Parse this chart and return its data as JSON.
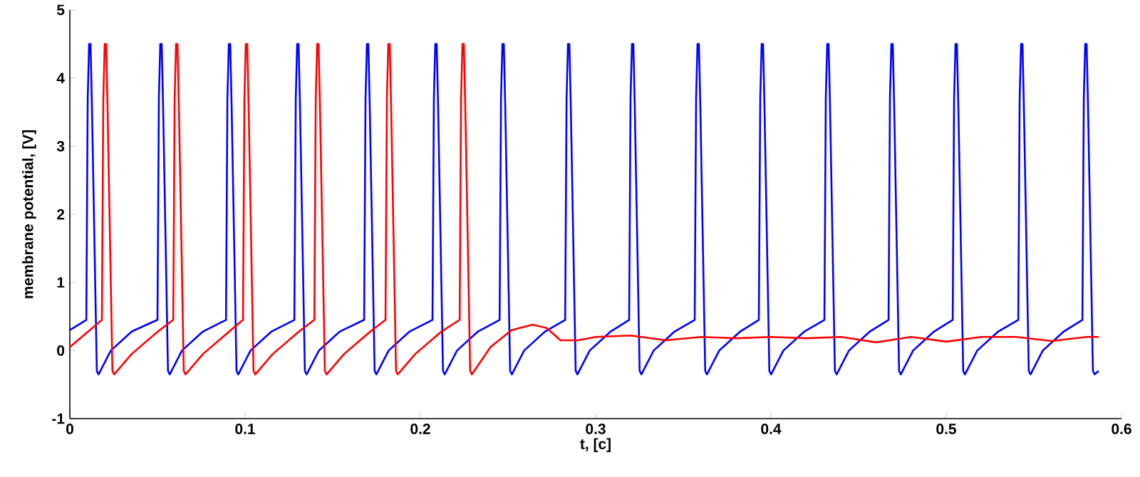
{
  "chart_data": {
    "type": "line",
    "xlabel": "t, [c]",
    "ylabel": "membrane potential, [V]",
    "xlim": [
      0,
      0.6
    ],
    "ylim": [
      -1,
      5
    ],
    "xticks": [
      0,
      0.1,
      0.2,
      0.3,
      0.4,
      0.5,
      0.6
    ],
    "yticks": [
      -1,
      0,
      1,
      2,
      3,
      4,
      5
    ],
    "grid": false,
    "marker": "none",
    "line_style": "solid",
    "series": [
      {
        "color": "#0000ff",
        "x": [
          0,
          0.0094,
          0.0102,
          0.011,
          0.0118,
          0.0126,
          0.0154,
          0.0164,
          0.0234,
          0.0354,
          0.05,
          0.0508,
          0.0516,
          0.0524,
          0.0532,
          0.056,
          0.057,
          0.064,
          0.076,
          0.0891,
          0.0899,
          0.0907,
          0.0915,
          0.0923,
          0.0951,
          0.0961,
          0.1031,
          0.1151,
          0.1281,
          0.1289,
          0.1297,
          0.1305,
          0.1313,
          0.1341,
          0.1351,
          0.1421,
          0.1541,
          0.1679,
          0.1687,
          0.1695,
          0.1703,
          0.1711,
          0.1739,
          0.1749,
          0.1819,
          0.1939,
          0.2069,
          0.2077,
          0.2085,
          0.2093,
          0.2101,
          0.2129,
          0.2139,
          0.2209,
          0.2329,
          0.2452,
          0.246,
          0.2468,
          0.2476,
          0.2484,
          0.2512,
          0.2522,
          0.2592,
          0.2712,
          0.2826,
          0.2834,
          0.2842,
          0.285,
          0.2858,
          0.2886,
          0.2896,
          0.2966,
          0.3086,
          0.3191,
          0.3199,
          0.3207,
          0.3215,
          0.3223,
          0.3251,
          0.3261,
          0.3331,
          0.3451,
          0.3565,
          0.3573,
          0.3581,
          0.3589,
          0.3597,
          0.3625,
          0.3635,
          0.3705,
          0.3825,
          0.3931,
          0.3939,
          0.3947,
          0.3955,
          0.3963,
          0.3991,
          0.4001,
          0.4071,
          0.4191,
          0.4305,
          0.4313,
          0.4321,
          0.4329,
          0.4337,
          0.4365,
          0.4375,
          0.4445,
          0.4565,
          0.4671,
          0.4679,
          0.4687,
          0.4695,
          0.4703,
          0.4731,
          0.4741,
          0.4811,
          0.4931,
          0.5037,
          0.5045,
          0.5053,
          0.5061,
          0.5069,
          0.5097,
          0.5107,
          0.5177,
          0.5297,
          0.5411,
          0.5419,
          0.5427,
          0.5435,
          0.5443,
          0.5471,
          0.5481,
          0.5551,
          0.5671,
          0.5777,
          0.5785,
          0.5793,
          0.5801,
          0.5809,
          0.5837,
          0.5847,
          0.587
        ],
        "values": [
          0.3,
          0.45,
          3.7,
          4.5,
          4.5,
          3.6,
          -0.3,
          -0.35,
          0.0,
          0.28,
          0.45,
          3.7,
          4.5,
          4.5,
          3.6,
          -0.3,
          -0.35,
          0.0,
          0.28,
          0.45,
          3.7,
          4.5,
          4.5,
          3.6,
          -0.3,
          -0.35,
          0.0,
          0.28,
          0.45,
          3.7,
          4.5,
          4.5,
          3.6,
          -0.3,
          -0.35,
          0.0,
          0.28,
          0.45,
          3.7,
          4.5,
          4.5,
          3.6,
          -0.3,
          -0.35,
          0.0,
          0.28,
          0.45,
          3.7,
          4.5,
          4.5,
          3.6,
          -0.3,
          -0.35,
          0.0,
          0.28,
          0.45,
          3.7,
          4.5,
          4.5,
          3.6,
          -0.3,
          -0.35,
          0.0,
          0.28,
          0.45,
          3.7,
          4.5,
          4.5,
          3.6,
          -0.3,
          -0.35,
          0.0,
          0.28,
          0.45,
          3.7,
          4.5,
          4.5,
          3.6,
          -0.3,
          -0.35,
          0.0,
          0.28,
          0.45,
          3.7,
          4.5,
          4.5,
          3.6,
          -0.3,
          -0.35,
          0.0,
          0.28,
          0.45,
          3.7,
          4.5,
          4.5,
          3.6,
          -0.3,
          -0.35,
          0.0,
          0.28,
          0.45,
          3.7,
          4.5,
          4.5,
          3.6,
          -0.3,
          -0.35,
          0.0,
          0.28,
          0.45,
          3.7,
          4.5,
          4.5,
          3.6,
          -0.3,
          -0.35,
          0.0,
          0.28,
          0.45,
          3.7,
          4.5,
          4.5,
          3.6,
          -0.3,
          -0.35,
          0.0,
          0.28,
          0.45,
          3.7,
          4.5,
          4.5,
          3.6,
          -0.3,
          -0.35,
          0.0,
          0.28,
          0.45,
          3.7,
          4.5,
          4.5,
          3.6,
          -0.3,
          -0.35,
          -0.3
        ]
      },
      {
        "color": "#ff0000",
        "x": [
          0,
          0.0183,
          0.0191,
          0.0199,
          0.0207,
          0.0215,
          0.0243,
          0.0253,
          0.0353,
          0.0503,
          0.059,
          0.0598,
          0.0606,
          0.0614,
          0.0622,
          0.065,
          0.066,
          0.076,
          0.091,
          0.0988,
          0.0996,
          0.1004,
          0.1012,
          0.102,
          0.1048,
          0.1058,
          0.1158,
          0.1308,
          0.1395,
          0.1403,
          0.1411,
          0.1419,
          0.1427,
          0.1455,
          0.1465,
          0.1565,
          0.1715,
          0.1801,
          0.1809,
          0.1817,
          0.1825,
          0.1833,
          0.1861,
          0.1871,
          0.1971,
          0.2121,
          0.2224,
          0.2232,
          0.224,
          0.2248,
          0.2256,
          0.2284,
          0.2294,
          0.24,
          0.252,
          0.264,
          0.272,
          0.28,
          0.29,
          0.3,
          0.32,
          0.34,
          0.36,
          0.38,
          0.4,
          0.42,
          0.44,
          0.46,
          0.48,
          0.5,
          0.52,
          0.54,
          0.56,
          0.58,
          0.587
        ],
        "values": [
          0.05,
          0.45,
          3.7,
          4.5,
          4.5,
          3.6,
          -0.3,
          -0.35,
          -0.05,
          0.28,
          0.45,
          3.7,
          4.5,
          4.5,
          3.6,
          -0.3,
          -0.35,
          -0.05,
          0.28,
          0.45,
          3.7,
          4.5,
          4.5,
          3.6,
          -0.3,
          -0.35,
          -0.05,
          0.28,
          0.45,
          3.7,
          4.5,
          4.5,
          3.6,
          -0.3,
          -0.35,
          -0.05,
          0.28,
          0.45,
          3.7,
          4.5,
          4.5,
          3.6,
          -0.3,
          -0.35,
          -0.05,
          0.28,
          0.45,
          3.7,
          4.5,
          4.5,
          3.6,
          -0.3,
          -0.35,
          0.05,
          0.3,
          0.38,
          0.33,
          0.15,
          0.15,
          0.2,
          0.22,
          0.15,
          0.2,
          0.18,
          0.2,
          0.18,
          0.2,
          0.12,
          0.2,
          0.13,
          0.2,
          0.2,
          0.14,
          0.2,
          0.2
        ]
      }
    ]
  }
}
